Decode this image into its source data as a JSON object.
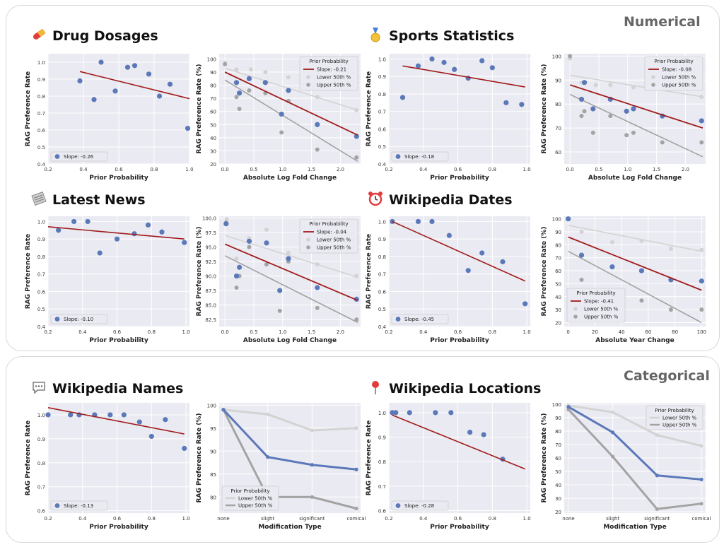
{
  "sections": {
    "numerical": "Numerical",
    "categorical": "Categorical"
  },
  "panels": [
    {
      "title": "Drug Dosages",
      "icon": "pill-icon"
    },
    {
      "title": "Sports Statistics",
      "icon": "medal-icon"
    },
    {
      "title": "Latest News",
      "icon": "newspaper-icon"
    },
    {
      "title": "Wikipedia Dates",
      "icon": "alarm-clock-icon"
    },
    {
      "title": "Wikipedia Names",
      "icon": "speech-bubble-icon"
    },
    {
      "title": "Wikipedia Locations",
      "icon": "map-pin-icon"
    }
  ],
  "colors": {
    "blue": "#5b78b9",
    "red": "#a01c1c",
    "lightgray": "#d3d3d3",
    "darkgray": "#a3a3a3",
    "panel_bg": "#eaeaf2"
  },
  "chart_data": [
    {
      "type": "scatter",
      "panel": "Drug Dosages",
      "xlabel": "Prior Probability",
      "ylabel": "RAG Preference Rate",
      "xlim": [
        0.2,
        1.0
      ],
      "ylim": [
        0.4,
        1.05
      ],
      "xticks": [
        "0.2",
        "0.4",
        "0.6",
        "0.8",
        "1.0"
      ],
      "yticks": [
        "0.4",
        "0.5",
        "0.6",
        "0.7",
        "0.8",
        "0.9",
        "1.0"
      ],
      "points": [
        [
          0.38,
          0.89
        ],
        [
          0.46,
          0.78
        ],
        [
          0.5,
          1.0
        ],
        [
          0.58,
          0.83
        ],
        [
          0.65,
          0.97
        ],
        [
          0.69,
          0.98
        ],
        [
          0.77,
          0.93
        ],
        [
          0.83,
          0.8
        ],
        [
          0.89,
          0.87
        ],
        [
          0.99,
          0.61
        ]
      ],
      "fit": [
        [
          0.38,
          0.945
        ],
        [
          1.0,
          0.785
        ]
      ],
      "legend": "Slope: -0.26"
    },
    {
      "type": "scatter",
      "panel": "Drug Dosages",
      "xlabel": "Absolute Log Fold Change",
      "ylabel": "RAG Preference Rate (%)",
      "xlim": [
        -0.1,
        2.35
      ],
      "ylim": [
        20,
        104
      ],
      "xticks": [
        "0.0",
        "0.5",
        "1.0",
        "1.5",
        "2.0"
      ],
      "yticks": [
        "20",
        "30",
        "40",
        "50",
        "60",
        "70",
        "80",
        "90",
        "100"
      ],
      "legend_title": "Prior Probability",
      "legend_entries": [
        "Slope: -0.21",
        "Lower 50th %",
        "Upper 50th %"
      ],
      "main": [
        [
          0.2,
          82
        ],
        [
          0.25,
          74
        ],
        [
          0.42,
          85
        ],
        [
          0.7,
          82
        ],
        [
          0.98,
          58
        ],
        [
          1.1,
          76
        ],
        [
          1.6,
          50
        ],
        [
          2.28,
          41
        ]
      ],
      "lower": [
        [
          0.0,
          97
        ],
        [
          0.2,
          92
        ],
        [
          0.45,
          92
        ],
        [
          0.7,
          90
        ],
        [
          1.1,
          86
        ],
        [
          1.6,
          71
        ],
        [
          2.28,
          61
        ]
      ],
      "upper": [
        [
          0.0,
          96
        ],
        [
          0.2,
          71
        ],
        [
          0.25,
          62
        ],
        [
          0.42,
          76
        ],
        [
          0.7,
          74
        ],
        [
          0.98,
          44
        ],
        [
          1.1,
          68
        ],
        [
          1.6,
          31
        ],
        [
          2.28,
          25
        ]
      ],
      "fit_main": [
        [
          0.0,
          90
        ],
        [
          2.3,
          42
        ]
      ],
      "fit_lower": [
        [
          0.0,
          93
        ],
        [
          2.3,
          61
        ]
      ],
      "fit_upper": [
        [
          0.0,
          84
        ],
        [
          2.3,
          22
        ]
      ]
    },
    {
      "type": "scatter",
      "panel": "Sports Statistics",
      "xlabel": "Prior Probability",
      "ylabel": "RAG Preference Rate",
      "xlim": [
        0.2,
        1.02
      ],
      "ylim": [
        0.4,
        1.03
      ],
      "xticks": [
        "0.2",
        "0.4",
        "0.6",
        "0.8",
        "1.0"
      ],
      "yticks": [
        "0.4",
        "0.5",
        "0.6",
        "0.7",
        "0.8",
        "0.9",
        "1.0"
      ],
      "points": [
        [
          0.28,
          0.78
        ],
        [
          0.37,
          0.96
        ],
        [
          0.45,
          1.0
        ],
        [
          0.52,
          0.98
        ],
        [
          0.58,
          0.94
        ],
        [
          0.66,
          0.89
        ],
        [
          0.74,
          0.99
        ],
        [
          0.8,
          0.95
        ],
        [
          0.88,
          0.75
        ],
        [
          0.97,
          0.74
        ]
      ],
      "fit": [
        [
          0.28,
          0.96
        ],
        [
          0.99,
          0.84
        ]
      ],
      "legend": "Slope: -0.18"
    },
    {
      "type": "scatter",
      "panel": "Sports Statistics",
      "xlabel": "Absolute Log Fold Change",
      "ylabel": "RAG Preference Rate (%)",
      "xlim": [
        -0.1,
        2.35
      ],
      "ylim": [
        55,
        101
      ],
      "xticks": [
        "0.0",
        "0.5",
        "1.0",
        "1.5",
        "2.0"
      ],
      "yticks": [
        "60",
        "70",
        "80",
        "90",
        "100"
      ],
      "legend_title": "Prior Probability",
      "legend_entries": [
        "Slope: -0.08",
        "Lower 50th %",
        "Upper 50th %"
      ],
      "main": [
        [
          0.2,
          82
        ],
        [
          0.25,
          89
        ],
        [
          0.4,
          78
        ],
        [
          0.7,
          82
        ],
        [
          0.98,
          77
        ],
        [
          1.1,
          78
        ],
        [
          1.6,
          75
        ],
        [
          2.28,
          73
        ]
      ],
      "lower": [
        [
          0.0,
          99
        ],
        [
          0.2,
          89
        ],
        [
          0.45,
          88
        ],
        [
          0.7,
          88
        ],
        [
          1.1,
          87
        ],
        [
          1.6,
          75
        ],
        [
          2.28,
          83
        ]
      ],
      "upper": [
        [
          0.0,
          100
        ],
        [
          0.2,
          75
        ],
        [
          0.25,
          77
        ],
        [
          0.4,
          68
        ],
        [
          0.7,
          75
        ],
        [
          0.98,
          67
        ],
        [
          1.1,
          68
        ],
        [
          1.6,
          64
        ],
        [
          2.28,
          64
        ]
      ],
      "fit_main": [
        [
          0.0,
          88
        ],
        [
          2.3,
          70
        ]
      ],
      "fit_lower": [
        [
          0.0,
          92
        ],
        [
          2.3,
          83
        ]
      ],
      "fit_upper": [
        [
          0.0,
          84
        ],
        [
          2.3,
          58
        ]
      ]
    },
    {
      "type": "scatter",
      "panel": "Latest News",
      "xlabel": "Prior Probability",
      "ylabel": "RAG Preference Rate",
      "xlim": [
        0.2,
        1.02
      ],
      "ylim": [
        0.4,
        1.03
      ],
      "xticks": [
        "0.2",
        "0.4",
        "0.6",
        "0.8",
        "1.0"
      ],
      "yticks": [
        "0.4",
        "0.5",
        "0.6",
        "0.7",
        "0.8",
        "0.9",
        "1.0"
      ],
      "points": [
        [
          0.26,
          0.95
        ],
        [
          0.35,
          1.0
        ],
        [
          0.43,
          1.0
        ],
        [
          0.5,
          0.82
        ],
        [
          0.6,
          0.9
        ],
        [
          0.7,
          0.93
        ],
        [
          0.78,
          0.98
        ],
        [
          0.86,
          0.94
        ],
        [
          0.99,
          0.88
        ]
      ],
      "fit": [
        [
          0.2,
          0.97
        ],
        [
          0.99,
          0.9
        ]
      ],
      "legend": "Slope: -0.10"
    },
    {
      "type": "scatter",
      "panel": "Latest News",
      "xlabel": "Absolute Log Fold Change",
      "ylabel": "RAG Preference Rate (%)",
      "xlim": [
        -0.1,
        2.35
      ],
      "ylim": [
        81.3,
        100.3
      ],
      "xticks": [
        "0.0",
        "0.5",
        "1.0",
        "1.5",
        "2.0"
      ],
      "yticks": [
        "82.5",
        "85.0",
        "87.5",
        "90.0",
        "92.5",
        "95.0",
        "97.5",
        "100.0"
      ],
      "legend_title": "Prior Probability",
      "legend_entries": [
        "Slope: -0.04",
        "Lower 50th %",
        "Upper 50th %"
      ],
      "main": [
        [
          0.02,
          99
        ],
        [
          0.2,
          90
        ],
        [
          0.25,
          91.5
        ],
        [
          0.42,
          96
        ],
        [
          0.72,
          95.7
        ],
        [
          0.95,
          87.5
        ],
        [
          1.1,
          93
        ],
        [
          1.6,
          88
        ],
        [
          2.28,
          86
        ]
      ],
      "lower": [
        [
          0.03,
          99.8
        ],
        [
          0.2,
          93
        ],
        [
          0.42,
          96.5
        ],
        [
          0.72,
          98
        ],
        [
          1.1,
          94
        ],
        [
          1.6,
          92
        ],
        [
          2.28,
          90
        ]
      ],
      "upper": [
        [
          0.02,
          99.2
        ],
        [
          0.2,
          88
        ],
        [
          0.25,
          90
        ],
        [
          0.42,
          95
        ],
        [
          0.72,
          92
        ],
        [
          0.95,
          84
        ],
        [
          1.1,
          92.5
        ],
        [
          1.6,
          84.5
        ],
        [
          2.28,
          82.5
        ]
      ],
      "fit_main": [
        [
          0.0,
          95.5
        ],
        [
          2.3,
          85.8
        ]
      ],
      "fit_lower": [
        [
          0.0,
          97
        ],
        [
          2.3,
          89.8
        ]
      ],
      "fit_upper": [
        [
          0.0,
          93.5
        ],
        [
          2.3,
          82
        ]
      ]
    },
    {
      "type": "scatter",
      "panel": "Wikipedia Dates",
      "xlabel": "Prior Probability",
      "ylabel": "RAG Preference Rate",
      "xlim": [
        0.2,
        1.02
      ],
      "ylim": [
        0.4,
        1.03
      ],
      "xticks": [
        "0.2",
        "0.4",
        "0.6",
        "0.8",
        "1.0"
      ],
      "yticks": [
        "0.4",
        "0.5",
        "0.6",
        "0.7",
        "0.8",
        "0.9",
        "1.0"
      ],
      "points": [
        [
          0.22,
          1.0
        ],
        [
          0.37,
          1.0
        ],
        [
          0.45,
          1.0
        ],
        [
          0.55,
          0.92
        ],
        [
          0.66,
          0.72
        ],
        [
          0.74,
          0.82
        ],
        [
          0.86,
          0.77
        ],
        [
          0.99,
          0.53
        ]
      ],
      "fit": [
        [
          0.22,
          1.0
        ],
        [
          0.99,
          0.66
        ]
      ],
      "legend": "Slope: -0.45"
    },
    {
      "type": "scatter",
      "panel": "Wikipedia Dates",
      "xlabel": "Absolute Year Change",
      "ylabel": "RAG Preference Rate (%)",
      "xlim": [
        -3,
        103
      ],
      "ylim": [
        17,
        102
      ],
      "xticks": [
        "0",
        "20",
        "40",
        "60",
        "80",
        "100"
      ],
      "yticks": [
        "20",
        "30",
        "40",
        "50",
        "60",
        "70",
        "80",
        "90",
        "100"
      ],
      "legend_title": "Prior Probability",
      "legend_entries": [
        "Slope: -0.41",
        "Lower 50th %",
        "Upper 50th %"
      ],
      "main": [
        [
          0,
          100
        ],
        [
          10,
          72
        ],
        [
          33,
          63
        ],
        [
          55,
          60
        ],
        [
          77,
          53
        ],
        [
          100,
          52
        ]
      ],
      "lower": [
        [
          10,
          90
        ],
        [
          33,
          82
        ],
        [
          55,
          83
        ],
        [
          77,
          77
        ],
        [
          100,
          76
        ]
      ],
      "upper": [
        [
          0,
          100
        ],
        [
          10,
          53
        ],
        [
          33,
          45
        ],
        [
          55,
          37
        ],
        [
          77,
          30
        ],
        [
          100,
          30
        ]
      ],
      "fit_main": [
        [
          0,
          86
        ],
        [
          100,
          45
        ]
      ],
      "fit_lower": [
        [
          0,
          95
        ],
        [
          100,
          75
        ]
      ],
      "fit_upper": [
        [
          0,
          75
        ],
        [
          100,
          20
        ]
      ]
    },
    {
      "type": "scatter",
      "panel": "Wikipedia Names",
      "xlabel": "Prior Probability",
      "ylabel": "RAG Preference Rate",
      "xlim": [
        0.2,
        1.02
      ],
      "ylim": [
        0.59,
        1.05
      ],
      "xticks": [
        "0.2",
        "0.4",
        "0.6",
        "0.8",
        "1.0"
      ],
      "yticks": [
        "0.6",
        "0.7",
        "0.8",
        "0.9",
        "1.0"
      ],
      "points": [
        [
          0.2,
          1.0
        ],
        [
          0.33,
          1.0
        ],
        [
          0.38,
          1.0
        ],
        [
          0.47,
          1.0
        ],
        [
          0.56,
          1.0
        ],
        [
          0.64,
          1.0
        ],
        [
          0.73,
          0.97
        ],
        [
          0.8,
          0.91
        ],
        [
          0.88,
          0.98
        ],
        [
          0.99,
          0.86
        ]
      ],
      "fit": [
        [
          0.2,
          1.03
        ],
        [
          0.99,
          0.92
        ]
      ],
      "legend": "Slope: -0.13"
    },
    {
      "type": "line",
      "panel": "Wikipedia Names",
      "xlabel": "Modification Type",
      "ylabel": "RAG Preference Rate (%)",
      "categories": [
        "none",
        "slight",
        "significant",
        "comical"
      ],
      "ylim": [
        76.5,
        100.5
      ],
      "yticks": [
        "80",
        "85",
        "90",
        "95",
        "100"
      ],
      "legend_title": "Prior Probability",
      "legend_entries": [
        "Lower 50th %",
        "Upper 50th %"
      ],
      "series": [
        {
          "name": "Lower 50th %",
          "values": [
            99,
            98,
            94.5,
            95
          ]
        },
        {
          "name": "Upper 50th %",
          "values": [
            99,
            80,
            80,
            77.5
          ]
        },
        {
          "name": "",
          "values": [
            99,
            88.7,
            87,
            86
          ]
        }
      ]
    },
    {
      "type": "scatter",
      "panel": "Wikipedia Locations",
      "xlabel": "Prior Probability",
      "ylabel": "RAG Preference Rate",
      "xlim": [
        0.2,
        1.02
      ],
      "ylim": [
        0.59,
        1.04
      ],
      "xticks": [
        "0.2",
        "0.4",
        "0.6",
        "0.8",
        "1.0"
      ],
      "yticks": [
        "0.6",
        "0.7",
        "0.8",
        "0.9",
        "1.0"
      ],
      "points": [
        [
          0.22,
          1.0
        ],
        [
          0.24,
          1.0
        ],
        [
          0.32,
          1.0
        ],
        [
          0.47,
          1.0
        ],
        [
          0.56,
          1.0
        ],
        [
          0.67,
          0.92
        ],
        [
          0.75,
          0.91
        ],
        [
          0.86,
          0.81
        ]
      ],
      "fit": [
        [
          0.22,
          0.99
        ],
        [
          0.99,
          0.77
        ]
      ],
      "legend": "Slope: -0.28"
    },
    {
      "type": "line",
      "panel": "Wikipedia Locations",
      "xlabel": "Modification Type",
      "ylabel": "RAG Preference Rate (%)",
      "categories": [
        "none",
        "slight",
        "significant",
        "comical"
      ],
      "ylim": [
        19,
        101
      ],
      "yticks": [
        "20",
        "30",
        "40",
        "50",
        "60",
        "70",
        "80",
        "90",
        "100"
      ],
      "legend_title": "Prior Probability",
      "legend_entries": [
        "Lower 50th %",
        "Upper 50th %"
      ],
      "series": [
        {
          "name": "Lower 50th %",
          "values": [
            99,
            94,
            77,
            69
          ]
        },
        {
          "name": "Upper 50th %",
          "values": [
            96,
            61,
            22,
            26
          ]
        },
        {
          "name": "",
          "values": [
            98,
            79,
            47,
            44
          ]
        }
      ]
    }
  ]
}
